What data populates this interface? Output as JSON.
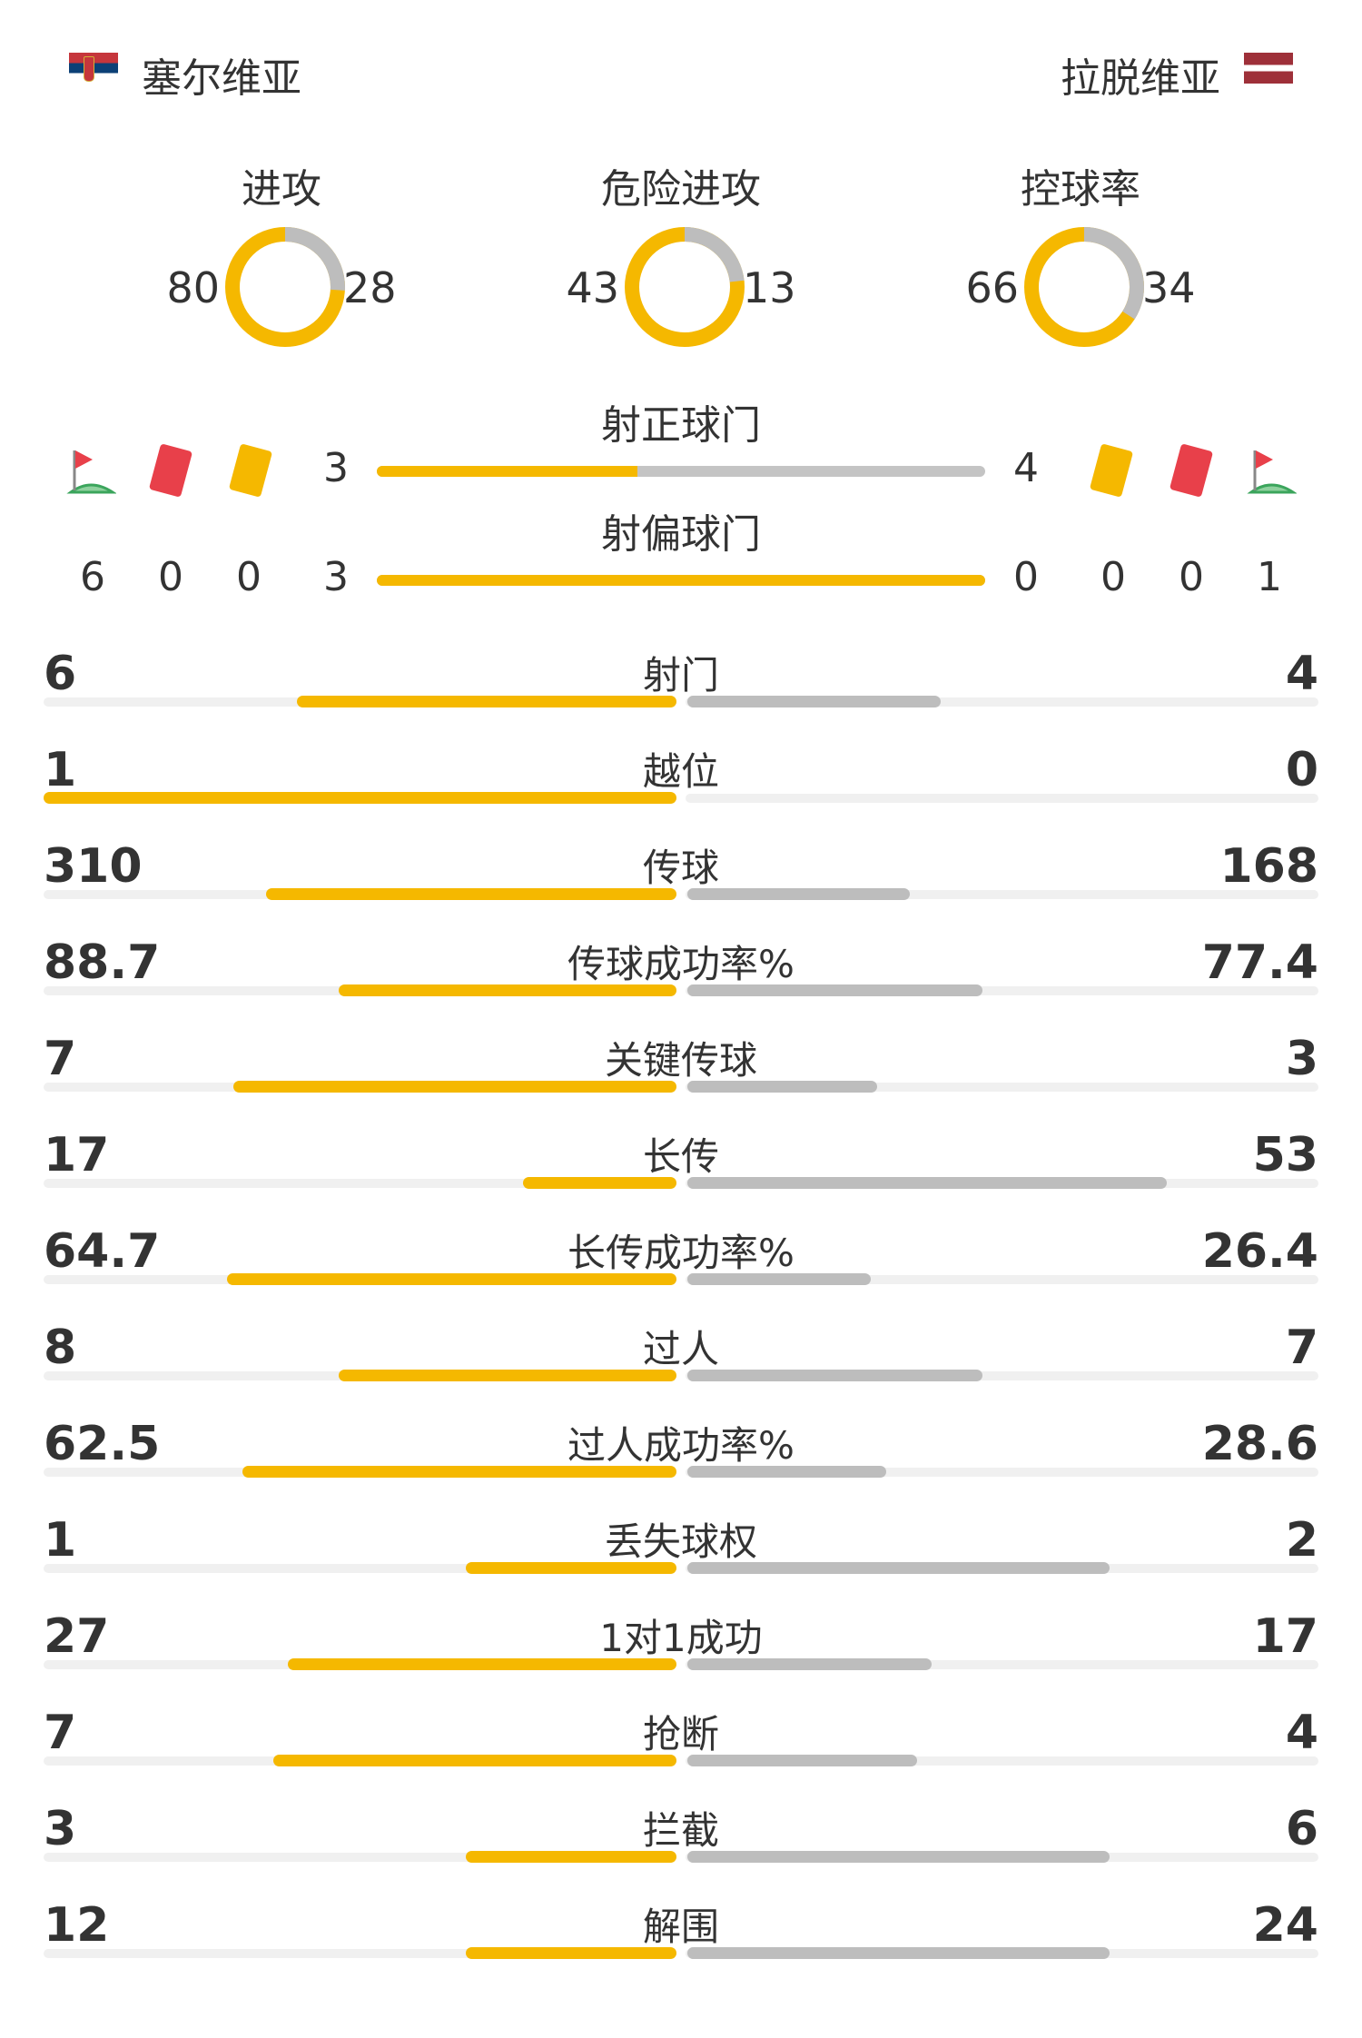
{
  "teams": {
    "home": "塞尔维亚",
    "away": "拉脱维亚"
  },
  "colors": {
    "home": "#f5b800",
    "away": "#bdbdbd"
  },
  "donuts": [
    {
      "title": "进攻",
      "home": 80,
      "away": 28
    },
    {
      "title": "危险进攻",
      "home": 43,
      "away": 13
    },
    {
      "title": "控球率",
      "home": 66,
      "away": 34
    }
  ],
  "shots_on": {
    "title": "射正球门",
    "home": 3,
    "away": 4
  },
  "shots_off": {
    "title": "射偏球门",
    "home": 3,
    "away": 0
  },
  "discipline": {
    "home": {
      "corners": 6,
      "red": 0,
      "yellow": 0
    },
    "away": {
      "yellow": 0,
      "red": 0,
      "corners": 1
    }
  },
  "icons": [
    "corner-flag-icon",
    "red-card-icon",
    "yellow-card-icon"
  ],
  "stats": [
    {
      "label": "射门",
      "home": "6",
      "away": "4"
    },
    {
      "label": "越位",
      "home": "1",
      "away": "0"
    },
    {
      "label": "传球",
      "home": "310",
      "away": "168"
    },
    {
      "label": "传球成功率%",
      "home": "88.7",
      "away": "77.4"
    },
    {
      "label": "关键传球",
      "home": "7",
      "away": "3"
    },
    {
      "label": "长传",
      "home": "17",
      "away": "53"
    },
    {
      "label": "长传成功率%",
      "home": "64.7",
      "away": "26.4"
    },
    {
      "label": "过人",
      "home": "8",
      "away": "7"
    },
    {
      "label": "过人成功率%",
      "home": "62.5",
      "away": "28.6"
    },
    {
      "label": "丢失球权",
      "home": "1",
      "away": "2"
    },
    {
      "label": "1对1成功",
      "home": "27",
      "away": "17"
    },
    {
      "label": "抢断",
      "home": "7",
      "away": "4"
    },
    {
      "label": "拦截",
      "home": "3",
      "away": "6"
    },
    {
      "label": "解围",
      "home": "12",
      "away": "24"
    }
  ]
}
